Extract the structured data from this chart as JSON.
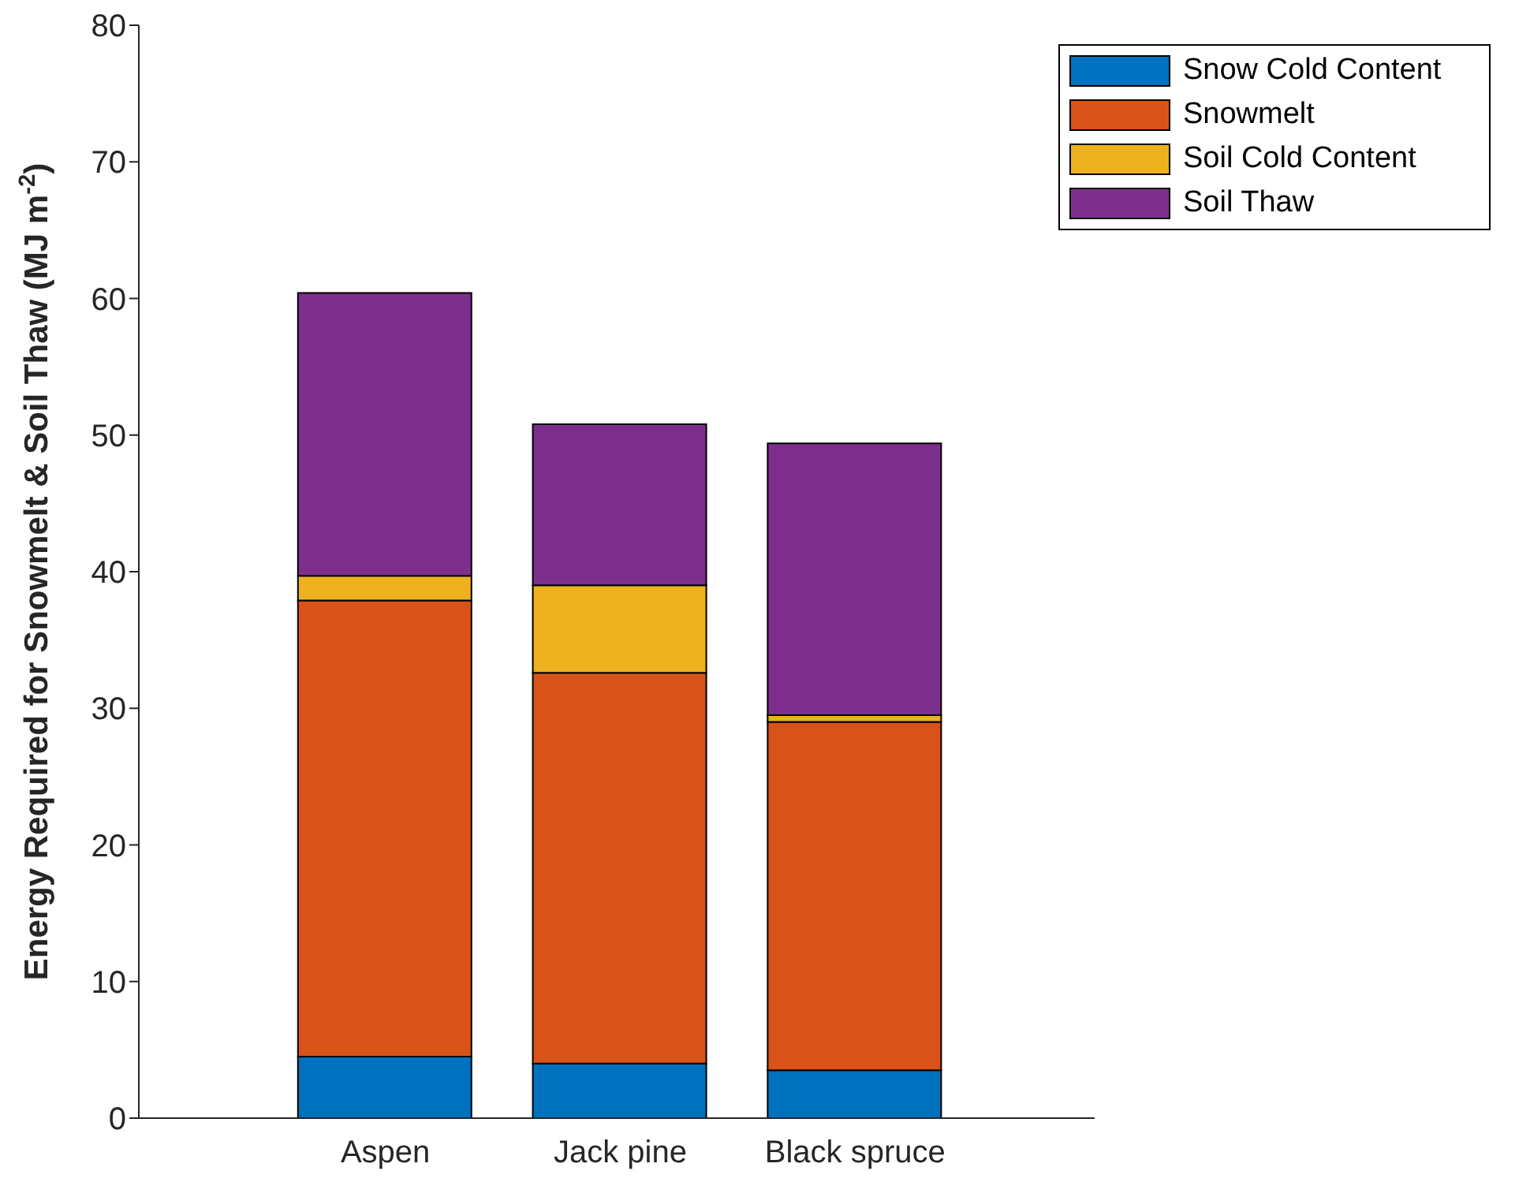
{
  "chart_data": {
    "type": "bar",
    "stacked": true,
    "ylabel": "Energy Required for Snowmelt & Soil Thaw (MJ m$^{-2}$)",
    "categories": [
      "Aspen",
      "Jack pine",
      "Black spruce"
    ],
    "series": [
      {
        "name": "Snow Cold Content",
        "color": "#0072bd",
        "values": [
          4.5,
          4.0,
          3.5
        ]
      },
      {
        "name": "Snowmelt",
        "color": "#d95319",
        "values": [
          33.4,
          28.6,
          25.5
        ]
      },
      {
        "name": "Soil Cold Content",
        "color": "#edb120",
        "values": [
          1.8,
          6.4,
          0.5
        ]
      },
      {
        "name": "Soil Thaw",
        "color": "#7e2f8e",
        "values": [
          20.7,
          11.8,
          19.9
        ]
      }
    ],
    "ylim": [
      0,
      80
    ],
    "yticks": [
      0,
      10,
      20,
      30,
      40,
      50,
      60,
      70,
      80
    ],
    "grid": false,
    "legend": "top right"
  }
}
